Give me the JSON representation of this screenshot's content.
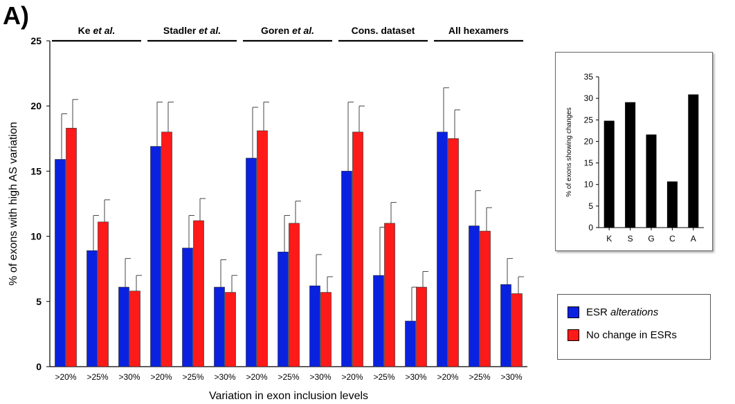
{
  "panel_label": "A)",
  "chart_data": [
    {
      "type": "bar",
      "xlabel": "Variation in exon inclusion levels",
      "ylabel": "% of exons with high AS variation",
      "ylim": [
        0,
        25
      ],
      "yticks": [
        0,
        5,
        10,
        15,
        20,
        25
      ],
      "grid": false,
      "groups": [
        {
          "label_parts": [
            {
              "text": "Ke ",
              "italic": false
            },
            {
              "text": "et al.",
              "italic": true
            }
          ]
        },
        {
          "label_parts": [
            {
              "text": "Stadler ",
              "italic": false
            },
            {
              "text": "et al.",
              "italic": true
            }
          ]
        },
        {
          "label_parts": [
            {
              "text": "Goren ",
              "italic": false
            },
            {
              "text": "et al.",
              "italic": true
            }
          ]
        },
        {
          "label_parts": [
            {
              "text": "Cons. dataset",
              "italic": false
            }
          ]
        },
        {
          "label_parts": [
            {
              "text": "All hexamers",
              "italic": false
            }
          ]
        }
      ],
      "categories": [
        ">20%",
        ">25%",
        ">30%",
        ">20%",
        ">25%",
        ">30%",
        ">20%",
        ">25%",
        ">30%",
        ">20%",
        ">25%",
        ">30%",
        ">20%",
        ">25%",
        ">30%"
      ],
      "series": [
        {
          "color": "#0a22e0",
          "values": [
            15.9,
            8.9,
            6.1,
            16.9,
            9.1,
            6.1,
            16.0,
            8.8,
            6.2,
            15.0,
            7.0,
            3.5,
            18.0,
            10.8,
            6.3
          ],
          "error_upper": [
            19.4,
            11.6,
            8.3,
            20.3,
            11.6,
            8.2,
            19.9,
            11.6,
            8.6,
            20.3,
            10.7,
            6.1,
            21.4,
            13.5,
            8.3
          ]
        },
        {
          "color": "#ff1a1a",
          "values": [
            18.3,
            11.1,
            5.8,
            18.0,
            11.2,
            5.7,
            18.1,
            11.0,
            5.7,
            18.0,
            11.0,
            6.1,
            17.5,
            10.4,
            5.6
          ],
          "error_upper": [
            20.5,
            12.8,
            7.0,
            20.3,
            12.9,
            7.0,
            20.3,
            12.7,
            6.9,
            20.0,
            12.6,
            7.3,
            19.7,
            12.2,
            6.9
          ]
        }
      ],
      "legend_placement": "bottom-right",
      "legend": [
        {
          "color": "#0a22e0",
          "parts": [
            {
              "text": "ESR ",
              "italic": false
            },
            {
              "text": "alterations",
              "italic": true
            }
          ]
        },
        {
          "color": "#ff1a1a",
          "parts": [
            {
              "text": "No change in ESRs",
              "italic": false
            }
          ]
        }
      ]
    },
    {
      "type": "bar",
      "placement": "inset-top-right",
      "ylabel": "% of exons showing changes",
      "ylim": [
        0,
        35
      ],
      "yticks": [
        0,
        5,
        10,
        15,
        20,
        25,
        30,
        35
      ],
      "categories": [
        "K",
        "S",
        "G",
        "C",
        "A"
      ],
      "values": [
        24.8,
        29.1,
        21.6,
        10.7,
        30.9
      ],
      "color": "#000000"
    }
  ]
}
